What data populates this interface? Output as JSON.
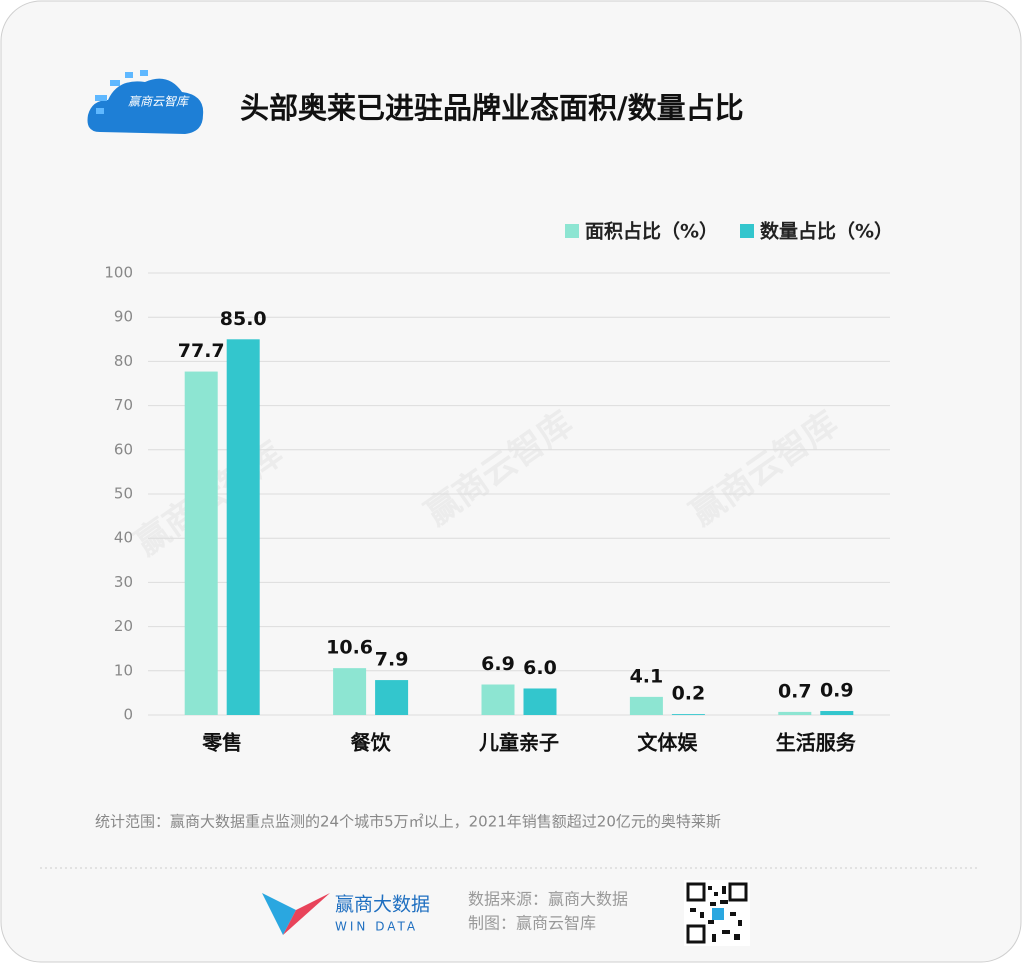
{
  "chart_data": {
    "type": "bar",
    "title": "头部奥莱已进驻品牌业态面积/数量占比",
    "logo_text": "赢商云智库",
    "categories": [
      "零售",
      "餐饮",
      "儿童亲子",
      "文体娱",
      "生活服务"
    ],
    "series": [
      {
        "name": "面积占比（%）",
        "color": "#8de5d2",
        "values": [
          77.7,
          10.6,
          6.9,
          4.1,
          0.7
        ],
        "value_labels": [
          "77.7",
          "10.6",
          "6.9",
          "4.1",
          "0.7"
        ]
      },
      {
        "name": "数量占比（%）",
        "color": "#33c6cd",
        "values": [
          85.0,
          7.9,
          6.0,
          0.2,
          0.9
        ],
        "value_labels": [
          "85.0",
          "7.9",
          "6.0",
          "0.2",
          "0.9"
        ]
      }
    ],
    "ylim": [
      0,
      100
    ],
    "yticks": [
      0,
      10,
      20,
      30,
      40,
      50,
      60,
      70,
      80,
      90,
      100
    ],
    "grid": true,
    "watermark": "赢商云智库",
    "footnote": "统计范围：赢商大数据重点监测的24个城市5万㎡以上，2021年销售额超过20亿元的奥特莱斯",
    "brand": "赢商大数据",
    "brand_en": "WIN DATA",
    "source": "数据来源：赢商大数据",
    "maker": "制图：赢商云智库"
  }
}
